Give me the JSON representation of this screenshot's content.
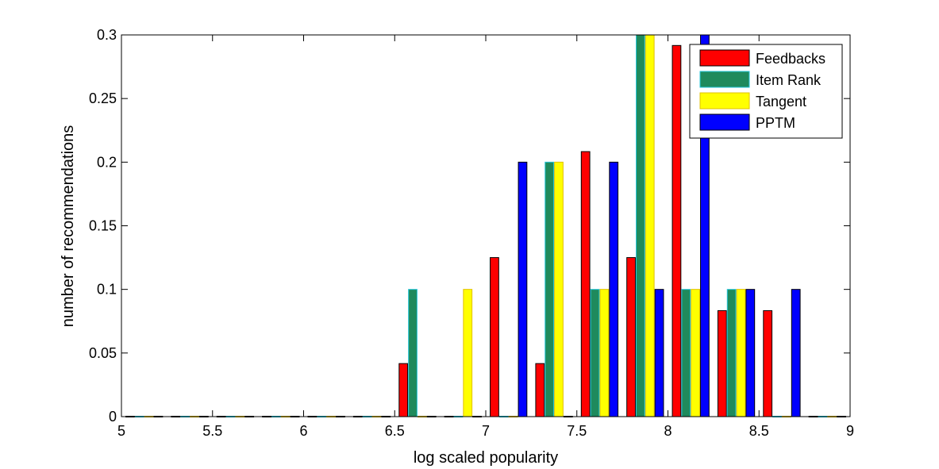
{
  "chart_data": {
    "type": "bar",
    "xlabel": "log scaled popularity",
    "ylabel": "number of recommendations",
    "xlim": [
      5,
      9
    ],
    "ylim": [
      0,
      0.3
    ],
    "x_ticks": [
      "5",
      "5.5",
      "6",
      "6.5",
      "7",
      "7.5",
      "8",
      "8.5",
      "9"
    ],
    "y_ticks": [
      "0",
      "0.05",
      "0.1",
      "0.15",
      "0.2",
      "0.25",
      "0.3"
    ],
    "legend_position": "top-right",
    "bin_centers": [
      5.125,
      5.375,
      5.625,
      5.875,
      6.125,
      6.375,
      6.625,
      6.875,
      7.125,
      7.375,
      7.625,
      7.875,
      8.125,
      8.375,
      8.625,
      8.875
    ],
    "series": [
      {
        "name": "Feedbacks",
        "color": "#ff0000",
        "edge": "#000000",
        "values": [
          0,
          0,
          0,
          0,
          0,
          0,
          0.0417,
          0,
          0.125,
          0.0417,
          0.2083,
          0.125,
          0.2917,
          0.0833,
          0.0833,
          0
        ]
      },
      {
        "name": "Item Rank",
        "color": "#1f8a5c",
        "edge": "#22c4d8",
        "values": [
          0,
          0,
          0,
          0,
          0,
          0,
          0.1,
          0,
          0,
          0.2,
          0.1,
          0.3,
          0.1,
          0.1,
          0,
          0
        ]
      },
      {
        "name": "Tangent",
        "color": "#ffff00",
        "edge": "#e0c000",
        "values": [
          0,
          0,
          0,
          0,
          0,
          0,
          0,
          0.1,
          0,
          0.2,
          0.1,
          0.3,
          0.1,
          0.1,
          0,
          0
        ]
      },
      {
        "name": "PPTM",
        "color": "#0000ff",
        "edge": "#000000",
        "values": [
          0,
          0,
          0,
          0,
          0,
          0,
          0,
          0,
          0.2,
          0,
          0.2,
          0.1,
          0.3,
          0.1,
          0.1,
          0
        ]
      }
    ]
  }
}
